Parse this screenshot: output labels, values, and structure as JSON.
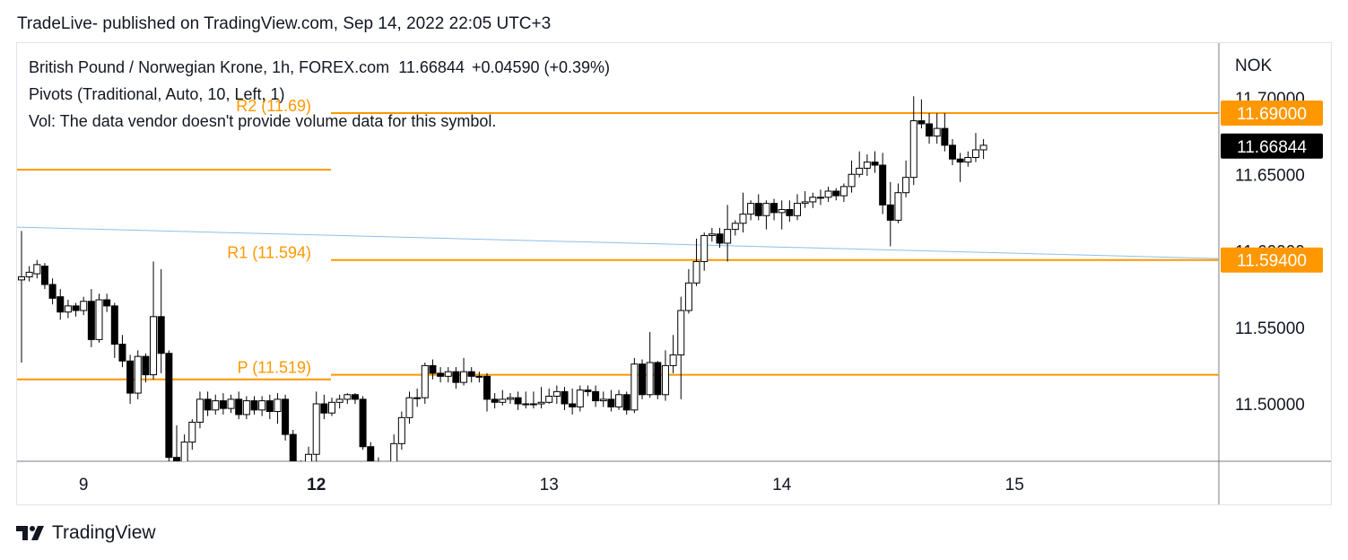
{
  "header": {
    "caption": "TradeLive- published on TradingView.com, Sep 14, 2022 22:05 UTC+3"
  },
  "legend": {
    "symbol": "British Pound / Norwegian Krone, 1h, FOREX.com",
    "price": "11.66844",
    "change": "+0.04590 (+0.39%)",
    "indicator_pivots": "Pivots (Traditional, Auto, 10, Left, 1)",
    "indicator_vol": "Vol: The data vendor doesn't provide volume data for this symbol."
  },
  "footer": {
    "brand": "TradingView",
    "logo_icon": "tradingview-logo-icon"
  },
  "colors": {
    "pivot": "#ff9800",
    "trendline": "#90bfe6",
    "candle_up_fill": "#ffffff",
    "candle_down_fill": "#000000",
    "candle_outline": "#000000",
    "axis_line": "#787b86",
    "last_price_bg": "#000000"
  },
  "chart_data": {
    "type": "candlestick",
    "currency": "NOK",
    "y_axis": {
      "range": [
        11.47,
        11.72
      ],
      "ticks": [
        "11.70000",
        "11.65000",
        "11.60000",
        "11.55000",
        "11.50000"
      ]
    },
    "x_axis": {
      "ticks": [
        {
          "label": "9",
          "bar": 8,
          "bold": false
        },
        {
          "label": "12",
          "bar": 38,
          "bold": true
        },
        {
          "label": "13",
          "bar": 68,
          "bold": false
        },
        {
          "label": "14",
          "bar": 98,
          "bold": false
        },
        {
          "label": "15",
          "bar": 128,
          "bold": false
        }
      ]
    },
    "price_labels": [
      {
        "value": 11.69,
        "text": "11.69000",
        "kind": "pivot"
      },
      {
        "value": 11.66844,
        "text": "11.66844",
        "kind": "last"
      },
      {
        "value": 11.594,
        "text": "11.59400",
        "kind": "pivot"
      }
    ],
    "pivots": [
      {
        "label": "R2 (11.69)",
        "value": 11.69,
        "from_bar": 40,
        "to_bar": 156
      },
      {
        "label": "R1 (11.594)",
        "value": 11.594,
        "from_bar": 40,
        "to_bar": 156
      },
      {
        "label": "P (11.519)",
        "value": 11.519,
        "from_bar": 40,
        "to_bar": 156
      },
      {
        "label": "",
        "value": 11.653,
        "from_bar": 0,
        "to_bar": 40
      },
      {
        "label": "",
        "value": 11.516,
        "from_bar": 0,
        "to_bar": 40
      }
    ],
    "trendline": {
      "from": {
        "bar": 0,
        "value": 11.6155
      },
      "to": {
        "bar": 150,
        "value": 11.594
      }
    },
    "candles": [
      [
        11.581,
        11.583,
        11.527,
        11.613
      ],
      [
        11.583,
        11.586,
        11.58,
        11.59
      ],
      [
        11.585,
        11.591,
        11.582,
        11.594
      ],
      [
        11.59,
        11.578,
        11.575,
        11.592
      ],
      [
        11.578,
        11.569,
        11.565,
        11.582
      ],
      [
        11.57,
        11.56,
        11.555,
        11.575
      ],
      [
        11.56,
        11.564,
        11.556,
        11.568
      ],
      [
        11.564,
        11.561,
        11.557,
        11.566
      ],
      [
        11.561,
        11.567,
        11.558,
        11.57
      ],
      [
        11.567,
        11.542,
        11.537,
        11.575
      ],
      [
        11.542,
        11.568,
        11.54,
        11.572
      ],
      [
        11.568,
        11.564,
        11.56,
        11.572
      ],
      [
        11.564,
        11.539,
        11.53,
        11.566
      ],
      [
        11.539,
        11.528,
        11.524,
        11.545
      ],
      [
        11.528,
        11.507,
        11.5,
        11.532
      ],
      [
        11.507,
        11.531,
        11.503,
        11.535
      ],
      [
        11.531,
        11.519,
        11.514,
        11.533
      ],
      [
        11.519,
        11.557,
        11.516,
        11.593
      ],
      [
        11.557,
        11.533,
        11.52,
        11.588
      ],
      [
        11.533,
        11.465,
        11.46,
        11.535
      ],
      [
        11.465,
        11.442,
        11.438,
        11.486
      ],
      [
        11.442,
        11.475,
        11.44,
        11.48
      ],
      [
        11.475,
        11.488,
        11.47,
        11.49
      ],
      [
        11.488,
        11.503,
        11.484,
        11.508
      ],
      [
        11.503,
        11.496,
        11.492,
        11.508
      ],
      [
        11.496,
        11.502,
        11.493,
        11.506
      ],
      [
        11.502,
        11.497,
        11.493,
        11.507
      ],
      [
        11.497,
        11.503,
        11.494,
        11.506
      ],
      [
        11.503,
        11.493,
        11.49,
        11.508
      ],
      [
        11.493,
        11.502,
        11.49,
        11.505
      ],
      [
        11.502,
        11.496,
        11.493,
        11.505
      ],
      [
        11.496,
        11.502,
        11.492,
        11.505
      ],
      [
        11.502,
        11.495,
        11.49,
        11.506
      ],
      [
        11.495,
        11.503,
        11.487,
        11.507
      ],
      [
        11.503,
        11.48,
        11.476,
        11.506
      ],
      [
        11.48,
        11.452,
        11.446,
        11.483
      ],
      [
        11.452,
        11.459,
        11.447,
        11.463
      ],
      [
        11.459,
        11.467,
        11.455,
        11.472
      ],
      [
        11.467,
        11.5,
        11.462,
        11.508
      ],
      [
        11.5,
        11.494,
        11.49,
        11.506
      ],
      [
        11.494,
        11.501,
        11.492,
        11.504
      ],
      [
        11.501,
        11.503,
        11.497,
        11.506
      ],
      [
        11.503,
        11.506,
        11.5,
        11.507
      ],
      [
        11.506,
        11.503,
        11.5,
        11.507
      ],
      [
        11.503,
        11.472,
        11.47,
        11.505
      ],
      [
        11.472,
        11.462,
        11.456,
        11.475
      ],
      [
        11.462,
        11.453,
        11.448,
        11.465
      ],
      [
        11.453,
        11.459,
        11.45,
        11.462
      ],
      [
        11.459,
        11.474,
        11.455,
        11.48
      ],
      [
        11.474,
        11.491,
        11.47,
        11.495
      ],
      [
        11.491,
        11.504,
        11.487,
        11.508
      ],
      [
        11.504,
        11.504,
        11.498,
        11.51
      ],
      [
        11.504,
        11.525,
        11.5,
        11.527
      ],
      [
        11.525,
        11.52,
        11.516,
        11.529
      ],
      [
        11.52,
        11.518,
        11.514,
        11.524
      ],
      [
        11.518,
        11.521,
        11.514,
        11.524
      ],
      [
        11.521,
        11.514,
        11.51,
        11.524
      ],
      [
        11.514,
        11.521,
        11.512,
        11.53
      ],
      [
        11.521,
        11.518,
        11.514,
        11.524
      ],
      [
        11.518,
        11.518,
        11.514,
        11.521
      ],
      [
        11.518,
        11.503,
        11.495,
        11.52
      ],
      [
        11.503,
        11.501,
        11.497,
        11.507
      ],
      [
        11.501,
        11.503,
        11.499,
        11.509
      ],
      [
        11.503,
        11.504,
        11.5,
        11.507
      ],
      [
        11.504,
        11.5,
        11.496,
        11.508
      ],
      [
        11.5,
        11.5,
        11.497,
        11.508
      ],
      [
        11.5,
        11.5,
        11.497,
        11.508
      ],
      [
        11.5,
        11.501,
        11.497,
        11.511
      ],
      [
        11.501,
        11.505,
        11.5,
        11.51
      ],
      [
        11.505,
        11.508,
        11.5,
        11.512
      ],
      [
        11.508,
        11.5,
        11.496,
        11.511
      ],
      [
        11.5,
        11.498,
        11.493,
        11.51
      ],
      [
        11.498,
        11.509,
        11.495,
        11.512
      ],
      [
        11.509,
        11.508,
        11.505,
        11.512
      ],
      [
        11.508,
        11.502,
        11.498,
        11.512
      ],
      [
        11.502,
        11.503,
        11.498,
        11.508
      ],
      [
        11.503,
        11.498,
        11.495,
        11.509
      ],
      [
        11.498,
        11.506,
        11.496,
        11.509
      ],
      [
        11.506,
        11.496,
        11.493,
        11.508
      ],
      [
        11.496,
        11.526,
        11.494,
        11.53
      ],
      [
        11.526,
        11.506,
        11.503,
        11.529
      ],
      [
        11.506,
        11.527,
        11.504,
        11.547
      ],
      [
        11.527,
        11.506,
        11.503,
        11.528
      ],
      [
        11.506,
        11.525,
        11.502,
        11.535
      ],
      [
        11.525,
        11.532,
        11.52,
        11.545
      ],
      [
        11.532,
        11.561,
        11.503,
        11.57
      ],
      [
        11.561,
        11.579,
        11.559,
        11.588
      ],
      [
        11.579,
        11.593,
        11.577,
        11.608
      ],
      [
        11.593,
        11.61,
        11.587,
        11.612
      ],
      [
        11.61,
        11.611,
        11.606,
        11.615
      ],
      [
        11.611,
        11.605,
        11.602,
        11.615
      ],
      [
        11.605,
        11.614,
        11.593,
        11.63
      ],
      [
        11.614,
        11.618,
        11.61,
        11.62
      ],
      [
        11.618,
        11.624,
        11.612,
        11.638
      ],
      [
        11.624,
        11.631,
        11.62,
        11.633
      ],
      [
        11.631,
        11.623,
        11.62,
        11.637
      ],
      [
        11.623,
        11.631,
        11.614,
        11.633
      ],
      [
        11.631,
        11.625,
        11.62,
        11.634
      ],
      [
        11.625,
        11.627,
        11.614,
        11.633
      ],
      [
        11.627,
        11.623,
        11.619,
        11.633
      ],
      [
        11.623,
        11.631,
        11.62,
        11.637
      ],
      [
        11.631,
        11.632,
        11.628,
        11.639
      ],
      [
        11.632,
        11.635,
        11.628,
        11.638
      ],
      [
        11.635,
        11.635,
        11.63,
        11.64
      ],
      [
        11.635,
        11.639,
        11.632,
        11.642
      ],
      [
        11.639,
        11.636,
        11.633,
        11.641
      ],
      [
        11.636,
        11.642,
        11.632,
        11.644
      ],
      [
        11.642,
        11.65,
        11.638,
        11.659
      ],
      [
        11.65,
        11.654,
        11.648,
        11.665
      ],
      [
        11.654,
        11.658,
        11.649,
        11.663
      ],
      [
        11.658,
        11.656,
        11.651,
        11.665
      ],
      [
        11.656,
        11.63,
        11.624,
        11.664
      ],
      [
        11.63,
        11.62,
        11.603,
        11.645
      ],
      [
        11.62,
        11.638,
        11.618,
        11.644
      ],
      [
        11.638,
        11.648,
        11.635,
        11.659
      ],
      [
        11.648,
        11.685,
        11.643,
        11.701
      ],
      [
        11.685,
        11.683,
        11.68,
        11.699
      ],
      [
        11.683,
        11.675,
        11.67,
        11.69
      ],
      [
        11.675,
        11.68,
        11.67,
        11.69
      ],
      [
        11.68,
        11.669,
        11.665,
        11.69
      ],
      [
        11.669,
        11.66,
        11.656,
        11.673
      ],
      [
        11.66,
        11.658,
        11.645,
        11.664
      ],
      [
        11.658,
        11.661,
        11.655,
        11.665
      ],
      [
        11.661,
        11.666,
        11.658,
        11.677
      ],
      [
        11.666,
        11.669,
        11.66,
        11.673
      ]
    ]
  }
}
